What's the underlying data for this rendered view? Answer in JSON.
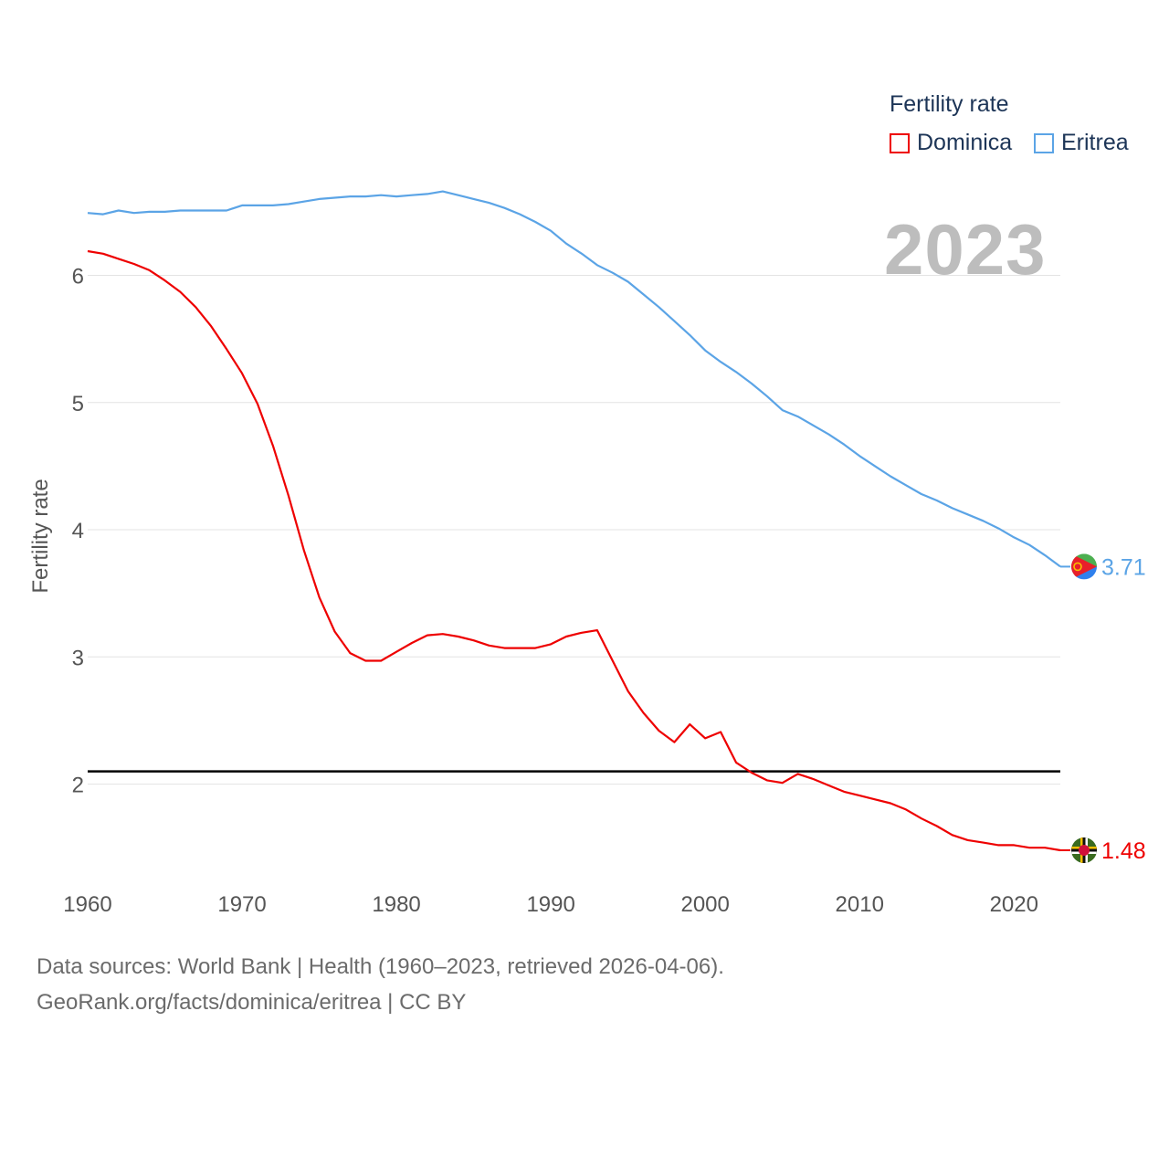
{
  "legend": {
    "title": "Fertility rate",
    "items": [
      {
        "name": "Dominica",
        "color": "#ee0000"
      },
      {
        "name": "Eritrea",
        "color": "#5ba4e6"
      }
    ]
  },
  "year_label": "2023",
  "source": {
    "line1": "Data sources: World Bank | Health (1960–2023, retrieved 2026-04-06).",
    "line2": "GeoRank.org/facts/dominica/eritrea | CC BY"
  },
  "chart_data": {
    "type": "line",
    "title": "Fertility rate",
    "xlabel": "",
    "ylabel": "Fertility rate",
    "xlim": [
      1960,
      2023
    ],
    "ylim": [
      1.2,
      6.7
    ],
    "x_ticks": [
      1960,
      1970,
      1980,
      1990,
      2000,
      2010,
      2020
    ],
    "y_ticks": [
      2,
      3,
      4,
      5,
      6
    ],
    "grid": true,
    "reference_line": {
      "y": 2.1,
      "color": "#000000"
    },
    "x": [
      1960,
      1961,
      1962,
      1963,
      1964,
      1965,
      1966,
      1967,
      1968,
      1969,
      1970,
      1971,
      1972,
      1973,
      1974,
      1975,
      1976,
      1977,
      1978,
      1979,
      1980,
      1981,
      1982,
      1983,
      1984,
      1985,
      1986,
      1987,
      1988,
      1989,
      1990,
      1991,
      1992,
      1993,
      1994,
      1995,
      1996,
      1997,
      1998,
      1999,
      2000,
      2001,
      2002,
      2003,
      2004,
      2005,
      2006,
      2007,
      2008,
      2009,
      2010,
      2011,
      2012,
      2013,
      2014,
      2015,
      2016,
      2017,
      2018,
      2019,
      2020,
      2021,
      2022,
      2023
    ],
    "series": [
      {
        "name": "Dominica",
        "color": "#ee0000",
        "end_label": "1.48",
        "values": [
          6.19,
          6.17,
          6.13,
          6.09,
          6.04,
          5.96,
          5.87,
          5.75,
          5.6,
          5.42,
          5.23,
          4.99,
          4.66,
          4.27,
          3.84,
          3.47,
          3.2,
          3.03,
          2.97,
          2.97,
          3.04,
          3.11,
          3.17,
          3.18,
          3.16,
          3.13,
          3.09,
          3.07,
          3.07,
          3.07,
          3.1,
          3.16,
          3.19,
          3.21,
          2.97,
          2.73,
          2.56,
          2.42,
          2.33,
          2.47,
          2.36,
          2.41,
          2.17,
          2.09,
          2.03,
          2.01,
          2.08,
          2.04,
          1.99,
          1.94,
          1.91,
          1.88,
          1.85,
          1.8,
          1.73,
          1.67,
          1.6,
          1.56,
          1.54,
          1.52,
          1.52,
          1.5,
          1.5,
          1.48
        ]
      },
      {
        "name": "Eritrea",
        "color": "#5ba4e6",
        "end_label": "3.71",
        "values": [
          6.49,
          6.48,
          6.51,
          6.49,
          6.5,
          6.5,
          6.51,
          6.51,
          6.51,
          6.51,
          6.55,
          6.55,
          6.55,
          6.56,
          6.58,
          6.6,
          6.61,
          6.62,
          6.62,
          6.63,
          6.62,
          6.63,
          6.64,
          6.66,
          6.63,
          6.6,
          6.57,
          6.53,
          6.48,
          6.42,
          6.35,
          6.25,
          6.17,
          6.08,
          6.02,
          5.95,
          5.85,
          5.75,
          5.64,
          5.53,
          5.41,
          5.32,
          5.24,
          5.15,
          5.05,
          4.94,
          4.89,
          4.82,
          4.75,
          4.67,
          4.58,
          4.5,
          4.42,
          4.35,
          4.28,
          4.23,
          4.17,
          4.12,
          4.07,
          4.01,
          3.94,
          3.88,
          3.8,
          3.71
        ]
      }
    ]
  }
}
